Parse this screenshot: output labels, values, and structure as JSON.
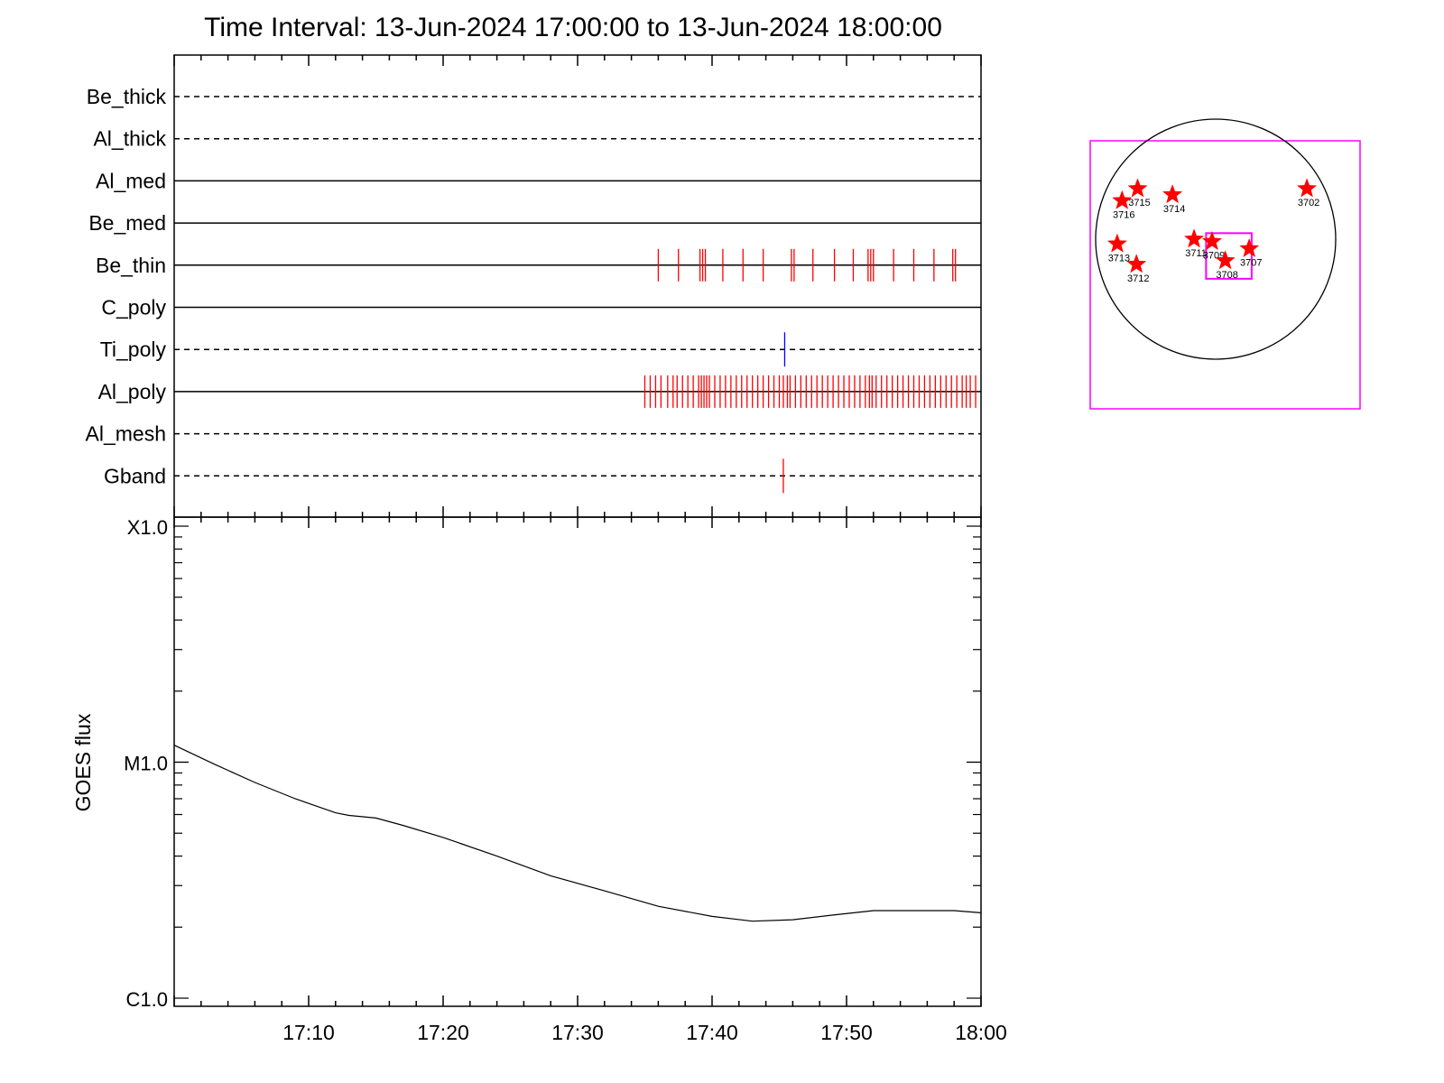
{
  "title": "Time Interval: 13-Jun-2024 17:00:00 to 13-Jun-2024 18:00:00",
  "colors": {
    "red": "#ff0000",
    "blue": "#0000ff",
    "magenta": "#ff00ff",
    "axis": "#000000"
  },
  "chart_data": [
    {
      "type": "event-timeline",
      "x_range_minutes": [
        0,
        60
      ],
      "channels": [
        {
          "name": "Be_thick",
          "style": "dashed",
          "events": []
        },
        {
          "name": "Al_thick",
          "style": "dashed",
          "events": []
        },
        {
          "name": "Al_med",
          "style": "solid",
          "events": []
        },
        {
          "name": "Be_med",
          "style": "solid",
          "events": []
        },
        {
          "name": "Be_thin",
          "style": "solid",
          "color": "#ff0000",
          "events": [
            36.0,
            37.5,
            39.1,
            39.3,
            39.5,
            40.8,
            42.3,
            43.8,
            45.9,
            46.1,
            47.5,
            49.1,
            50.5,
            51.6,
            51.8,
            52.0,
            53.5,
            55.0,
            56.5,
            57.9,
            58.1
          ]
        },
        {
          "name": "C_poly",
          "style": "solid",
          "events": []
        },
        {
          "name": "Ti_poly",
          "style": "dashed",
          "color": "#0000ff",
          "events": [
            45.4
          ]
        },
        {
          "name": "Al_poly",
          "style": "solid",
          "color": "#ff0000",
          "events": [
            35.0,
            35.4,
            35.8,
            36.2,
            36.7,
            37.1,
            37.4,
            37.8,
            38.2,
            38.6,
            39.0,
            39.2,
            39.4,
            39.6,
            39.8,
            40.2,
            40.6,
            41.0,
            41.4,
            41.8,
            42.2,
            42.6,
            43.0,
            43.4,
            43.8,
            44.2,
            44.6,
            45.0,
            45.3,
            45.6,
            45.8,
            46.2,
            46.6,
            47.0,
            47.4,
            47.8,
            48.2,
            48.6,
            49.0,
            49.4,
            49.8,
            50.2,
            50.6,
            51.0,
            51.4,
            51.7,
            51.9,
            52.2,
            52.6,
            53.0,
            53.4,
            53.8,
            54.2,
            54.6,
            55.0,
            55.4,
            55.8,
            56.2,
            56.6,
            57.0,
            57.4,
            57.8,
            58.2,
            58.6,
            58.9,
            59.2,
            59.6
          ]
        },
        {
          "name": "Al_mesh",
          "style": "dashed",
          "events": []
        },
        {
          "name": "Gband",
          "style": "dashed",
          "color": "#ff0000",
          "events": [
            45.3
          ]
        }
      ]
    },
    {
      "type": "line",
      "ylabel": "GOES flux",
      "y_scale": "log",
      "y_range_wm2": [
        1e-06,
        0.0001
      ],
      "y_tick_labels": [
        "X1.0",
        "M1.0",
        "C1.0"
      ],
      "y_tick_values_wm2": [
        0.0001,
        1e-05,
        1e-06
      ],
      "x_ticks": [
        {
          "minute": 10,
          "label": "17:10"
        },
        {
          "minute": 20,
          "label": "17:20"
        },
        {
          "minute": 30,
          "label": "17:30"
        },
        {
          "minute": 40,
          "label": "17:40"
        },
        {
          "minute": 50,
          "label": "17:50"
        },
        {
          "minute": 60,
          "label": "18:00"
        }
      ],
      "x_range_minutes": [
        0,
        60
      ],
      "series": [
        {
          "x": [
            0,
            3,
            6,
            9,
            12,
            13,
            15,
            17,
            20,
            24,
            28,
            32,
            36,
            40,
            43,
            46,
            49,
            52,
            55,
            58,
            60
          ],
          "y": [
            1.18e-05,
            9.8e-06,
            8.2e-06,
            7e-06,
            6.1e-06,
            5.95e-06,
            5.8e-06,
            5.4e-06,
            4.8e-06,
            4e-06,
            3.3e-06,
            2.85e-06,
            2.45e-06,
            2.22e-06,
            2.12e-06,
            2.15e-06,
            2.25e-06,
            2.35e-06,
            2.35e-06,
            2.35e-06,
            2.3e-06
          ]
        }
      ]
    },
    {
      "type": "scatter",
      "kind": "solar-disk",
      "x_range_arcsec": [
        -1000,
        1000
      ],
      "y_range_arcsec": [
        -1000,
        1000
      ],
      "points": [
        {
          "label": "3715",
          "x": -650,
          "y": 420
        },
        {
          "label": "3716",
          "x": -780,
          "y": 320
        },
        {
          "label": "3714",
          "x": -360,
          "y": 370
        },
        {
          "label": "3702",
          "x": 760,
          "y": 420
        },
        {
          "label": "3713",
          "x": -820,
          "y": -40
        },
        {
          "label": "3712",
          "x": -660,
          "y": -210
        },
        {
          "label": "3711",
          "x": -180,
          "y": 0
        },
        {
          "label": "3709",
          "x": -30,
          "y": -20
        },
        {
          "label": "3708",
          "x": 80,
          "y": -180
        },
        {
          "label": "3707",
          "x": 280,
          "y": -80
        }
      ],
      "field_of_view_box": {
        "x": [
          -80,
          300
        ],
        "y": [
          -330,
          50
        ]
      }
    }
  ]
}
